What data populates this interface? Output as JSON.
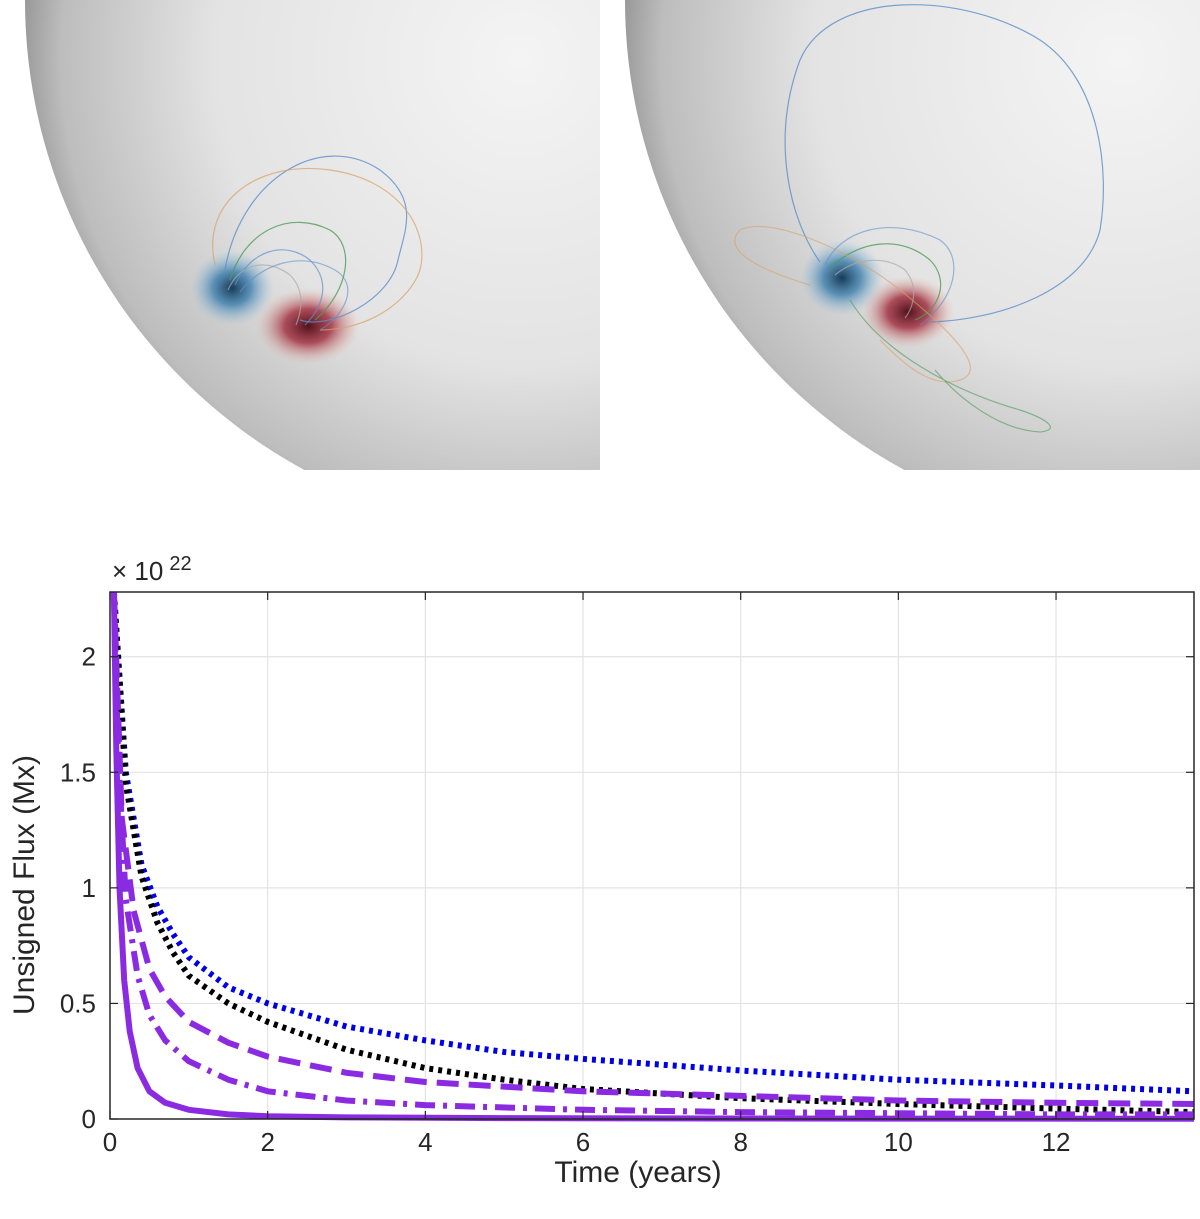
{
  "chart_data": {
    "type": "line",
    "title": "",
    "xlabel": "Time (years)",
    "ylabel": "Unsigned Flux (Mx)",
    "y_exponent_prefix": "× 10",
    "y_exponent_power": "22",
    "xlim": [
      0,
      13.75
    ],
    "ylim": [
      0,
      2.28
    ],
    "xticks": [
      0,
      2,
      4,
      6,
      8,
      10,
      12
    ],
    "yticks": [
      0,
      0.5,
      1,
      1.5,
      2
    ],
    "ytick_labels": [
      "0",
      "0.5",
      "1",
      "1.5",
      "2"
    ],
    "grid": true,
    "series": [
      {
        "style": "dotted",
        "color": "#0000e6",
        "x": [
          0.05,
          0.2,
          0.4,
          0.6,
          0.8,
          1,
          1.5,
          2,
          3,
          4,
          5,
          6,
          8,
          10,
          12,
          13.75
        ],
        "y": [
          2.28,
          1.5,
          1.1,
          0.92,
          0.8,
          0.7,
          0.57,
          0.5,
          0.4,
          0.34,
          0.29,
          0.26,
          0.21,
          0.17,
          0.145,
          0.12
        ]
      },
      {
        "style": "dotted",
        "color": "#000000",
        "x": [
          0.05,
          0.2,
          0.4,
          0.6,
          0.8,
          1,
          1.5,
          2,
          3,
          4,
          5,
          6,
          8,
          10,
          12,
          13.75
        ],
        "y": [
          2.28,
          1.45,
          1.05,
          0.85,
          0.72,
          0.62,
          0.5,
          0.42,
          0.3,
          0.22,
          0.17,
          0.13,
          0.09,
          0.065,
          0.045,
          0.03
        ]
      },
      {
        "style": "dashed",
        "color": "#8a2be2",
        "x": [
          0.05,
          0.15,
          0.3,
          0.5,
          0.7,
          1,
          1.5,
          2,
          3,
          4,
          6,
          8,
          10,
          12,
          13.75
        ],
        "y": [
          2.28,
          1.3,
          0.9,
          0.65,
          0.53,
          0.42,
          0.33,
          0.27,
          0.2,
          0.16,
          0.12,
          0.1,
          0.08,
          0.07,
          0.065
        ]
      },
      {
        "style": "dashdot",
        "color": "#8a2be2",
        "x": [
          0.05,
          0.1,
          0.2,
          0.35,
          0.5,
          0.7,
          1,
          1.5,
          2,
          3,
          4,
          6,
          8,
          10,
          12,
          13.75
        ],
        "y": [
          2.28,
          1.6,
          0.95,
          0.62,
          0.45,
          0.34,
          0.25,
          0.17,
          0.12,
          0.08,
          0.06,
          0.04,
          0.03,
          0.025,
          0.02,
          0.02
        ]
      },
      {
        "style": "solid",
        "color": "#8a2be2",
        "x": [
          0.05,
          0.08,
          0.12,
          0.18,
          0.25,
          0.35,
          0.5,
          0.7,
          1,
          1.5,
          2,
          3,
          5,
          8,
          13.75
        ],
        "y": [
          2.28,
          1.6,
          1.0,
          0.6,
          0.38,
          0.22,
          0.12,
          0.07,
          0.04,
          0.02,
          0.012,
          0.007,
          0.004,
          0.002,
          0.001
        ]
      }
    ]
  },
  "sun_panels": [
    {
      "name": "left",
      "negative_color": "#3b7fae",
      "positive_color": "#a0283a"
    },
    {
      "name": "right",
      "negative_color": "#3b7fae",
      "positive_color": "#a0283a"
    }
  ]
}
